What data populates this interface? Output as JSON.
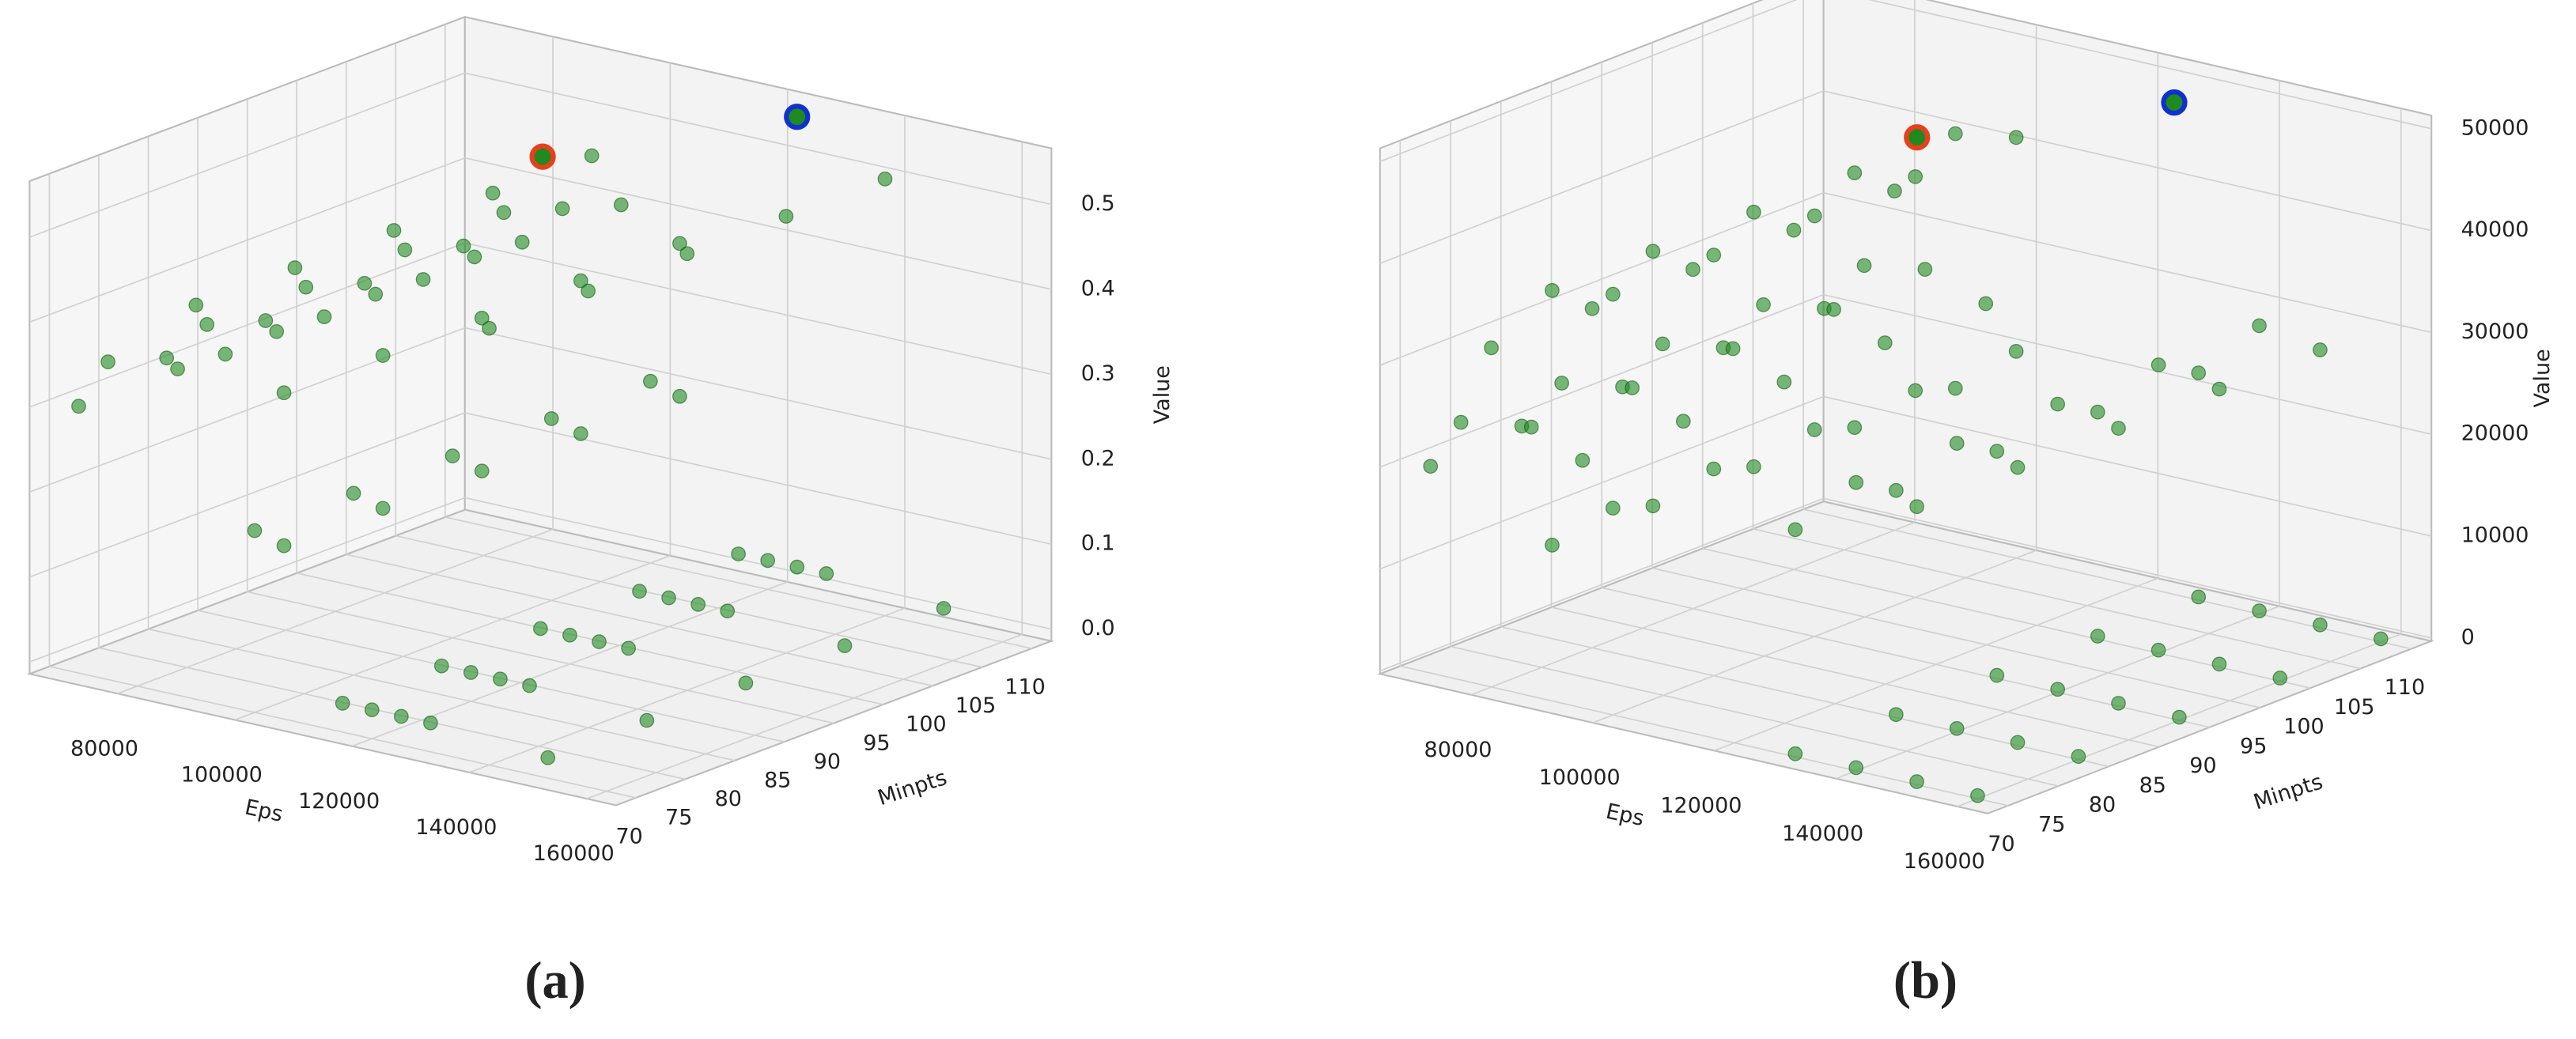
{
  "chart_data": [
    {
      "type": "scatter3d",
      "label": "(a)",
      "xlabel": "Eps",
      "ylabel": "Minpts",
      "zlabel": "Value",
      "xlim": [
        65000,
        165000
      ],
      "ylim": [
        68,
        112
      ],
      "zlim": [
        -0.014,
        0.566
      ],
      "xticks": [
        80000,
        100000,
        120000,
        140000,
        160000
      ],
      "yticks": [
        70,
        75,
        80,
        85,
        90,
        95,
        100,
        105,
        110
      ],
      "zticks": [
        {
          "value": 0,
          "label": "0.0"
        },
        0.1,
        0.2,
        0.3,
        0.4,
        0.5
      ],
      "series": [
        {
          "color": "#1f8a1f",
          "x": [
            115000,
            115000,
            115000,
            115000,
            115000,
            120000,
            120000,
            120000,
            120000,
            120000,
            125000,
            125000,
            125000,
            125000,
            125000,
            130000,
            130000,
            130000,
            130000,
            130000,
            150000,
            150000,
            150000,
            150000,
            150000,
            100000,
            100000,
            100000,
            100000,
            100000,
            105000,
            105000,
            105000,
            105000,
            105000,
            70000,
            70000,
            70000,
            70000,
            70000,
            75000,
            75000,
            75000,
            75000,
            75000,
            85000,
            85000,
            85000,
            85000,
            85000,
            95000,
            95000,
            95000,
            95000,
            95000,
            105000,
            105000,
            105000,
            105000,
            105000,
            90000,
            90000,
            90000,
            90000,
            90000,
            140000,
            140000,
            140000,
            140000,
            140000
          ],
          "y": [
            70,
            80,
            90,
            100,
            110,
            70,
            80,
            90,
            100,
            110,
            70,
            80,
            90,
            100,
            110,
            70,
            80,
            90,
            100,
            110,
            70,
            80,
            90,
            100,
            110,
            70,
            80,
            90,
            100,
            110,
            70,
            80,
            90,
            100,
            110,
            70,
            80,
            90,
            100,
            110,
            70,
            80,
            90,
            100,
            110,
            70,
            80,
            90,
            100,
            110,
            70,
            80,
            90,
            100,
            110,
            70,
            80,
            90,
            100,
            110,
            70,
            80,
            90,
            100,
            110,
            70,
            80,
            90,
            100,
            110
          ],
          "z": [
            0.02,
            0.02,
            0.02,
            0.02,
            0.02,
            0.02,
            0.02,
            0.02,
            0.02,
            0.02,
            0.02,
            0.02,
            0.02,
            0.02,
            0.02,
            0.02,
            0.02,
            0.02,
            0.02,
            0.02,
            0.01,
            0.01,
            0.01,
            0.01,
            0.01,
            0.2,
            0.2,
            0.2,
            0.2,
            0.2,
            0.19,
            0.19,
            0.19,
            0.19,
            0.19,
            0.3,
            0.3,
            0.3,
            0.3,
            0.3,
            0.36,
            0.36,
            0.36,
            0.36,
            0.36,
            0.38,
            0.38,
            0.38,
            0.38,
            0.38,
            0.4,
            0.4,
            0.4,
            0.4,
            0.4,
            0.37,
            0.37,
            0.37,
            0.37,
            0.37,
            0.45,
            0.45,
            0.45,
            0.45,
            0.45,
            0.5,
            0.5,
            0.5,
            0.5,
            0.5
          ]
        },
        {
          "color": "#e8401c",
          "x": [
            85000
          ],
          "y": [
            108
          ],
          "z": [
            0.45
          ]
        },
        {
          "color": "#1030d0",
          "x": [
            125000
          ],
          "y": [
            110
          ],
          "z": [
            0.55
          ]
        }
      ]
    },
    {
      "type": "scatter3d",
      "label": "(b)",
      "xlabel": "Eps",
      "ylabel": "Minpts",
      "zlabel": "Value",
      "xlim": [
        65000,
        165000
      ],
      "ylim": [
        68,
        112
      ],
      "zlim": [
        -300,
        51300
      ],
      "xticks": [
        80000,
        100000,
        120000,
        140000,
        160000
      ],
      "yticks": [
        70,
        75,
        80,
        85,
        90,
        95,
        100,
        105,
        110
      ],
      "zticks": [
        0,
        10000,
        20000,
        30000,
        40000,
        50000
      ],
      "series": [
        {
          "color": "#1f8a1f",
          "x": [
            130000,
            130000,
            130000,
            130000,
            130000,
            140000,
            140000,
            140000,
            140000,
            140000,
            150000,
            150000,
            150000,
            150000,
            150000,
            160000,
            160000,
            160000,
            160000,
            160000,
            90000,
            90000,
            90000,
            90000,
            90000,
            100000,
            100000,
            100000,
            100000,
            100000,
            80000,
            80000,
            80000,
            80000,
            80000,
            75000,
            75000,
            75000,
            75000,
            75000,
            85000,
            85000,
            85000,
            85000,
            85000,
            95000,
            95000,
            95000,
            95000,
            95000,
            70000,
            70000,
            70000,
            70000,
            70000,
            100000,
            100000,
            100000,
            100000,
            100000,
            90000,
            90000,
            90000,
            90000,
            90000,
            140000,
            140000,
            140000,
            140000,
            140000,
            150000,
            150000,
            150000,
            150000,
            150000,
            130000,
            130000,
            130000,
            130000,
            130000
          ],
          "y": [
            70,
            80,
            90,
            100,
            110,
            70,
            80,
            90,
            100,
            110,
            70,
            80,
            90,
            100,
            110,
            70,
            80,
            90,
            100,
            110,
            70,
            80,
            90,
            100,
            110,
            70,
            80,
            90,
            100,
            110,
            70,
            80,
            90,
            100,
            110,
            70,
            80,
            90,
            100,
            110,
            70,
            80,
            90,
            100,
            110,
            70,
            80,
            90,
            100,
            110,
            70,
            80,
            90,
            100,
            110,
            70,
            80,
            90,
            100,
            110,
            70,
            80,
            90,
            100,
            110,
            70,
            80,
            90,
            100,
            110,
            70,
            80,
            90,
            100,
            110,
            70,
            80,
            90,
            100,
            110
          ],
          "z": [
            0,
            0,
            0,
            0,
            0,
            0,
            0,
            0,
            0,
            0,
            0,
            0,
            0,
            0,
            0,
            0,
            0,
            0,
            0,
            0,
            40000,
            40000,
            40000,
            40000,
            40000,
            41000,
            41000,
            41000,
            41000,
            41000,
            33000,
            33000,
            33000,
            33000,
            33000,
            25000,
            25000,
            25000,
            25000,
            25000,
            26000,
            26000,
            26000,
            26000,
            26000,
            24000,
            24000,
            24000,
            24000,
            24000,
            20000,
            20000,
            20000,
            20000,
            20000,
            20000,
            20000,
            20000,
            20000,
            20000,
            15000,
            15000,
            15000,
            15000,
            15000,
            28000,
            28000,
            28000,
            28000,
            28000,
            27000,
            27000,
            27000,
            27000,
            27000,
            22000,
            22000,
            22000,
            22000,
            22000
          ]
        },
        {
          "color": "#e8401c",
          "x": [
            87000
          ],
          "y": [
            108
          ],
          "z": [
            40000
          ]
        },
        {
          "color": "#1030d0",
          "x": [
            126000
          ],
          "y": [
            110
          ],
          "z": [
            48000
          ]
        }
      ]
    }
  ]
}
